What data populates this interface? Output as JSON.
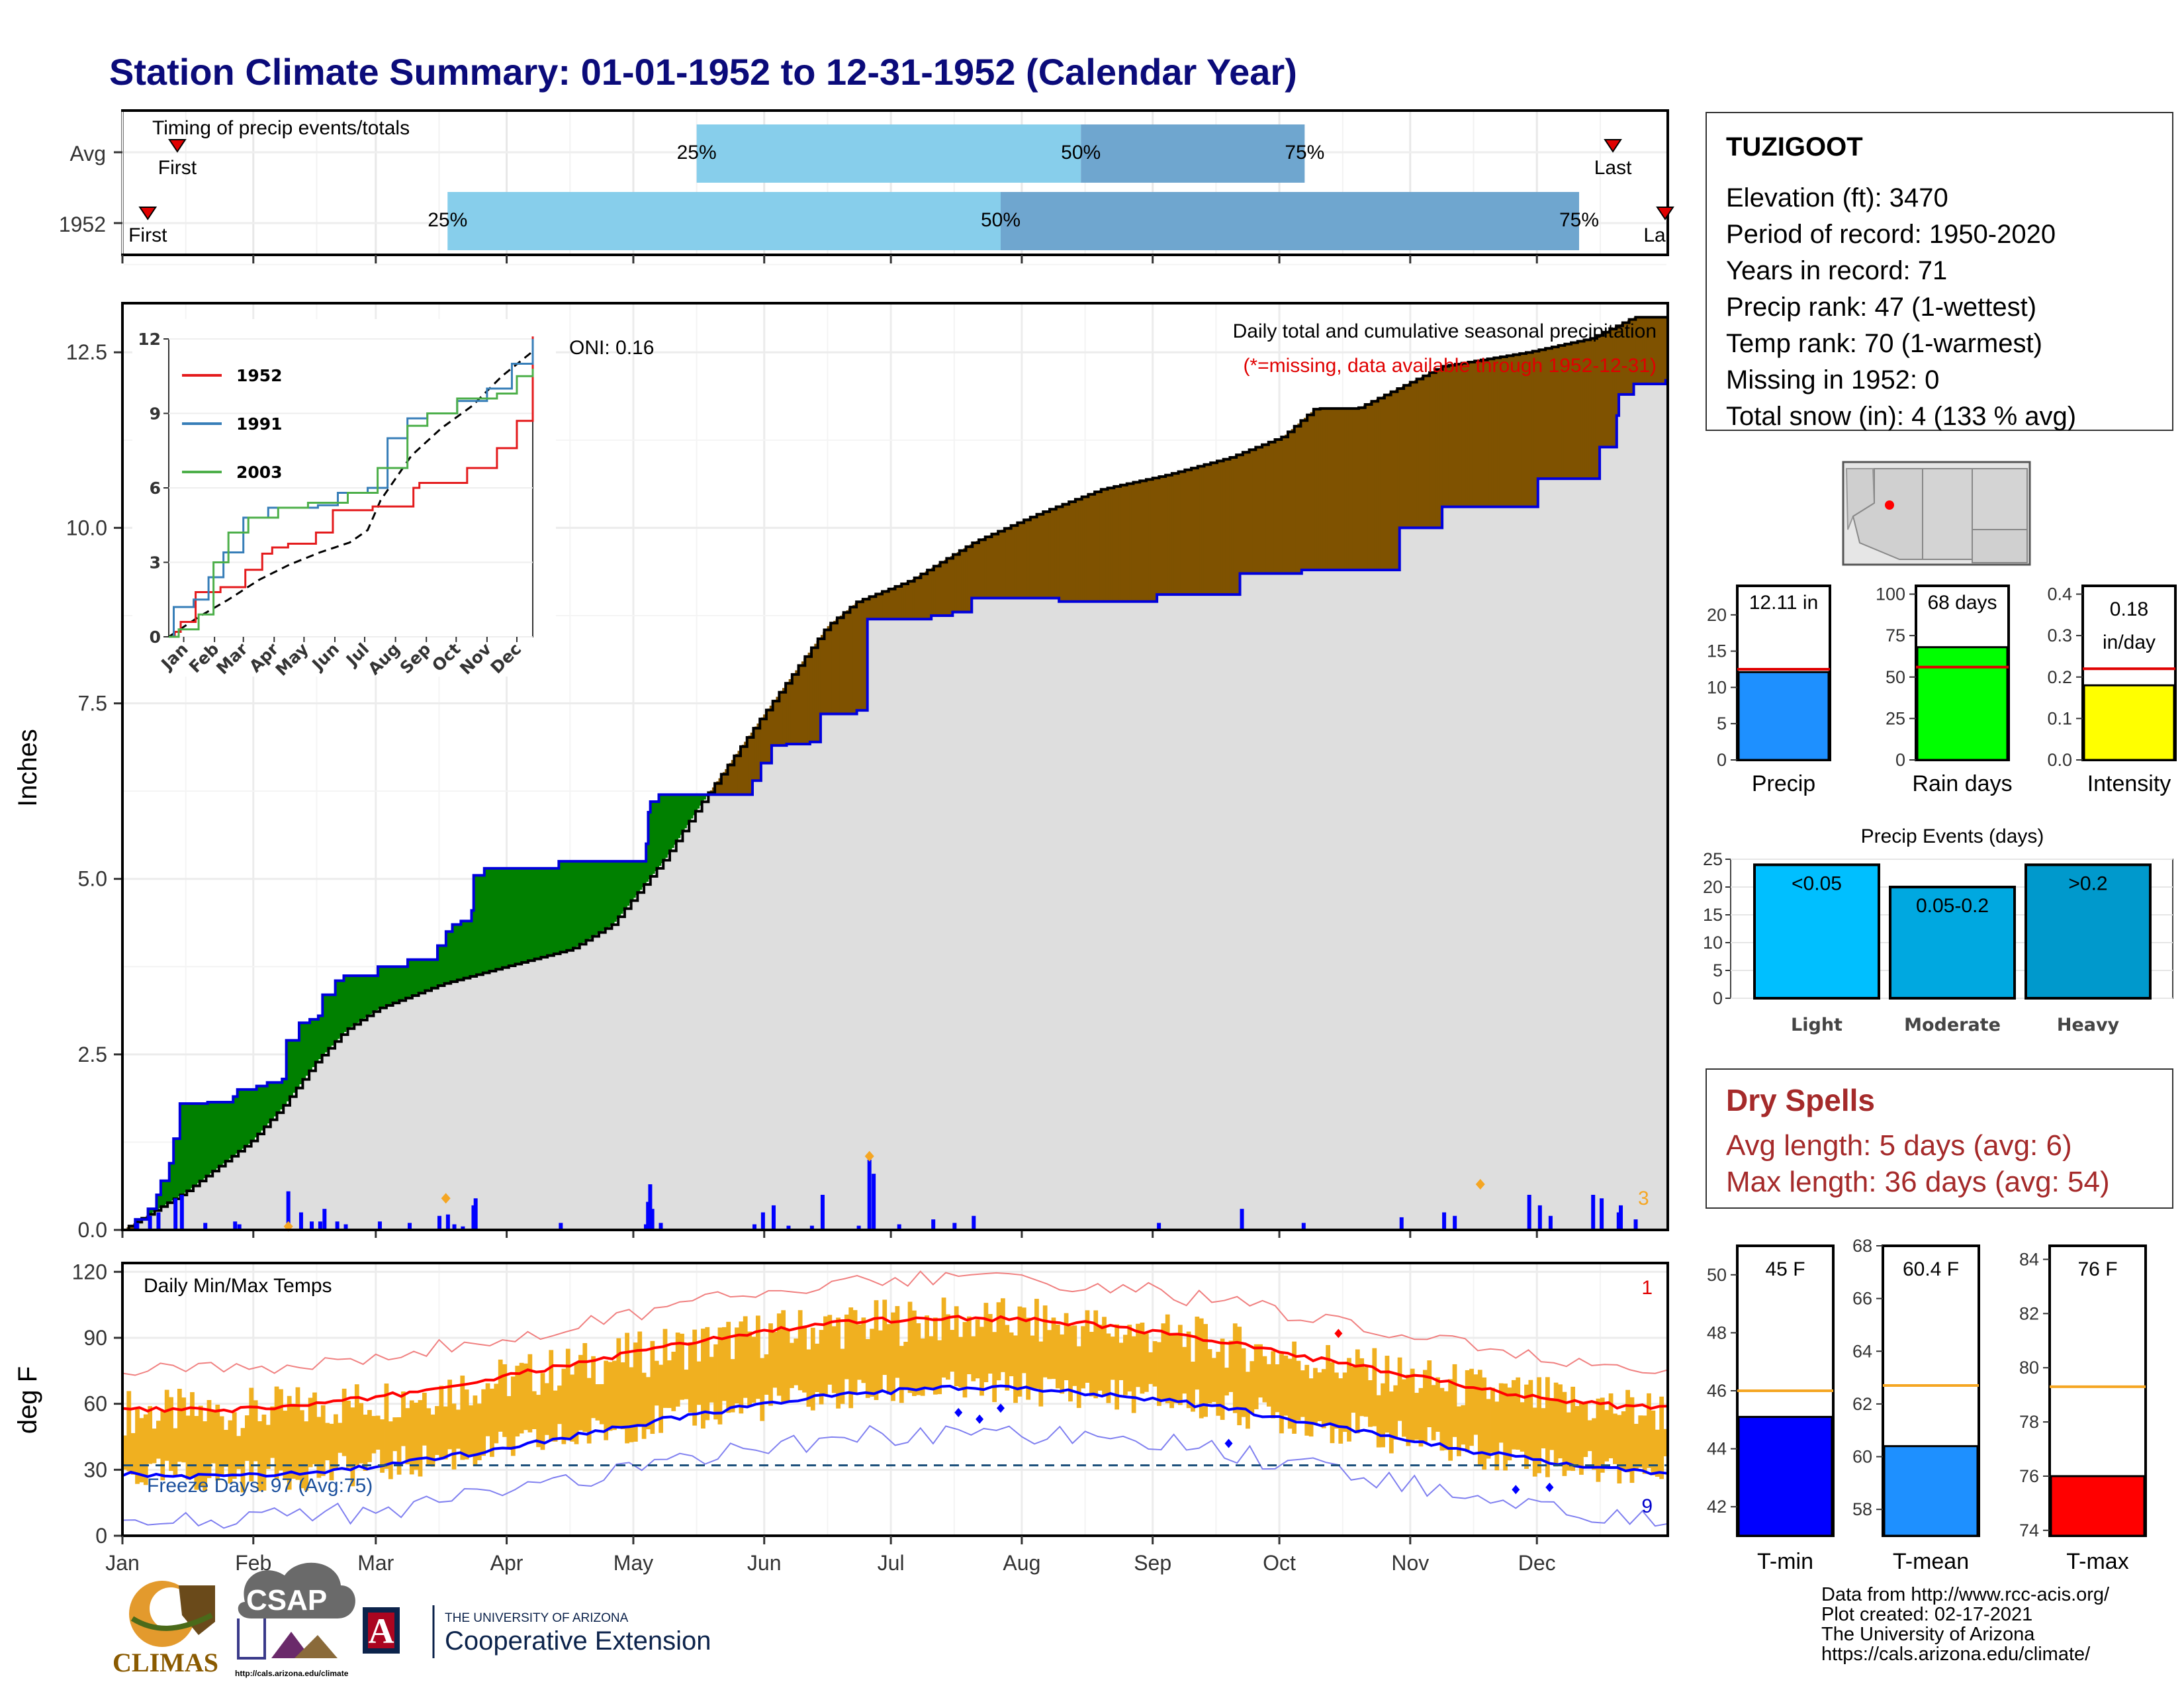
{
  "title": "Station Climate Summary: 01-01-1952 to 12-31-1952 (Calendar Year)",
  "months": [
    "Jan",
    "Feb",
    "Mar",
    "Apr",
    "May",
    "Jun",
    "Jul",
    "Aug",
    "Sep",
    "Oct",
    "Nov",
    "Dec"
  ],
  "timing": {
    "label": "Timing of precip events/totals",
    "rows": [
      {
        "name": "Avg",
        "first_doy": 13,
        "q25_doy": 136,
        "q50_doy": 227,
        "q75_doy": 280,
        "last_doy": 353,
        "first_label": "First",
        "last_label": "Last"
      },
      {
        "name": "1952",
        "first_doy": 6,
        "q25_doy": 77,
        "q50_doy": 208,
        "q75_doy": 345,
        "last_doy": 366,
        "first_label": "First",
        "last_label": "La"
      }
    ],
    "q_labels": [
      "25%",
      "50%",
      "75%"
    ]
  },
  "precip": {
    "ylabel": "Inches",
    "yticks": [
      "0.0",
      "2.5",
      "5.0",
      "7.5",
      "10.0",
      "12.5"
    ],
    "ylim": [
      0,
      13.2
    ],
    "annotation_title": "Daily total and cumulative seasonal precipitation",
    "annotation_missing": "(*=missing, data available through 1952-12-31)",
    "oni": "ONI: 0.16",
    "count_label": "3",
    "series_1952_cumulative": [
      [
        0,
        0
      ],
      [
        6,
        0.15
      ],
      [
        12,
        0.3
      ],
      [
        16,
        0.5
      ],
      [
        18,
        0.7
      ],
      [
        22,
        0.95
      ],
      [
        24,
        1.3
      ],
      [
        27,
        1.8
      ],
      [
        40,
        1.82
      ],
      [
        52,
        1.9
      ],
      [
        54,
        2.0
      ],
      [
        63,
        2.05
      ],
      [
        68,
        2.1
      ],
      [
        75,
        2.15
      ],
      [
        77,
        2.7
      ],
      [
        83,
        2.95
      ],
      [
        88,
        3.0
      ],
      [
        92,
        3.05
      ],
      [
        94,
        3.35
      ],
      [
        100,
        3.55
      ],
      [
        104,
        3.62
      ],
      [
        118,
        3.62
      ],
      [
        120,
        3.75
      ],
      [
        132,
        3.75
      ],
      [
        134,
        3.85
      ],
      [
        143,
        3.85
      ],
      [
        148,
        4.05
      ],
      [
        152,
        4.25
      ],
      [
        155,
        4.35
      ],
      [
        159,
        4.4
      ],
      [
        164,
        4.55
      ],
      [
        165,
        5.05
      ],
      [
        170,
        5.15
      ],
      [
        201,
        5.15
      ],
      [
        205,
        5.25
      ],
      [
        244,
        5.25
      ],
      [
        246,
        5.5
      ],
      [
        247,
        5.95
      ],
      [
        248,
        6.1
      ],
      [
        252,
        6.2
      ],
      [
        287,
        6.2
      ],
      [
        296,
        6.4
      ],
      [
        300,
        6.65
      ],
      [
        305,
        6.9
      ],
      [
        312,
        6.92
      ],
      [
        323,
        6.95
      ],
      [
        328,
        7.35
      ],
      [
        345,
        7.4
      ],
      [
        350,
        8.7
      ],
      [
        364,
        8.7
      ],
      [
        380,
        8.75
      ],
      [
        390,
        8.8
      ],
      [
        399,
        9.0
      ],
      [
        428,
        9.0
      ],
      [
        440,
        8.95
      ],
      [
        477,
        8.95
      ],
      [
        486,
        9.05
      ],
      [
        518,
        9.05
      ],
      [
        525,
        9.35
      ],
      [
        548,
        9.35
      ],
      [
        554,
        9.4
      ],
      [
        595,
        9.4
      ],
      [
        600,
        10.0
      ],
      [
        610,
        10.0
      ],
      [
        620,
        10.3
      ],
      [
        660,
        10.3
      ],
      [
        665,
        10.7
      ],
      [
        690,
        10.7
      ],
      [
        694,
        11.15
      ],
      [
        702,
        11.6
      ],
      [
        703,
        11.9
      ],
      [
        710,
        12.05
      ],
      [
        725,
        12.1
      ],
      [
        726,
        12.1
      ]
    ],
    "series_avg_cumulative": [
      [
        0,
        0
      ],
      [
        30,
        0.55
      ],
      [
        60,
        1.25
      ],
      [
        75,
        1.75
      ],
      [
        91,
        2.4
      ],
      [
        105,
        2.85
      ],
      [
        120,
        3.15
      ],
      [
        150,
        3.5
      ],
      [
        180,
        3.75
      ],
      [
        211,
        4.0
      ],
      [
        230,
        4.35
      ],
      [
        255,
        5.3
      ],
      [
        270,
        6.0
      ],
      [
        300,
        7.3
      ],
      [
        331,
        8.6
      ],
      [
        345,
        8.95
      ],
      [
        370,
        9.25
      ],
      [
        400,
        9.8
      ],
      [
        430,
        10.2
      ],
      [
        460,
        10.55
      ],
      [
        490,
        10.75
      ],
      [
        520,
        11.0
      ],
      [
        545,
        11.3
      ],
      [
        560,
        11.7
      ],
      [
        580,
        11.7
      ],
      [
        600,
        12.0
      ],
      [
        610,
        12.15
      ],
      [
        620,
        12.3
      ],
      [
        660,
        12.5
      ],
      [
        690,
        12.7
      ],
      [
        700,
        12.85
      ],
      [
        710,
        13.0
      ],
      [
        726,
        13.0
      ]
    ],
    "daily_bars": [
      [
        6,
        0.1
      ],
      [
        12,
        0.2
      ],
      [
        16,
        0.25
      ],
      [
        24,
        0.45
      ],
      [
        27,
        0.5
      ],
      [
        38,
        0.1
      ],
      [
        52,
        0.12
      ],
      [
        54,
        0.08
      ],
      [
        77,
        0.55
      ],
      [
        83,
        0.25
      ],
      [
        88,
        0.12
      ],
      [
        92,
        0.12
      ],
      [
        94,
        0.3
      ],
      [
        100,
        0.12
      ],
      [
        104,
        0.08
      ],
      [
        120,
        0.12
      ],
      [
        134,
        0.1
      ],
      [
        148,
        0.2
      ],
      [
        152,
        0.22
      ],
      [
        155,
        0.08
      ],
      [
        159,
        0.05
      ],
      [
        164,
        0.35
      ],
      [
        165,
        0.45
      ],
      [
        205,
        0.1
      ],
      [
        245,
        0.08
      ],
      [
        246,
        0.4
      ],
      [
        247,
        0.65
      ],
      [
        248,
        0.3
      ],
      [
        252,
        0.1
      ],
      [
        296,
        0.08
      ],
      [
        300,
        0.25
      ],
      [
        305,
        0.35
      ],
      [
        312,
        0.06
      ],
      [
        323,
        0.06
      ],
      [
        328,
        0.5
      ],
      [
        345,
        0.06
      ],
      [
        350,
        1.0
      ],
      [
        352,
        0.8
      ],
      [
        364,
        0.08
      ],
      [
        380,
        0.15
      ],
      [
        390,
        0.1
      ],
      [
        399,
        0.2
      ],
      [
        486,
        0.1
      ],
      [
        525,
        0.3
      ],
      [
        554,
        0.1
      ],
      [
        600,
        0.18
      ],
      [
        620,
        0.25
      ],
      [
        625,
        0.2
      ],
      [
        660,
        0.5
      ],
      [
        665,
        0.35
      ],
      [
        670,
        0.2
      ],
      [
        690,
        0.5
      ],
      [
        694,
        0.45
      ],
      [
        702,
        0.25
      ],
      [
        703,
        0.35
      ],
      [
        710,
        0.15
      ]
    ],
    "extreme_markers": [
      [
        151,
        0.45
      ],
      [
        350,
        1.05
      ],
      [
        637,
        0.65
      ],
      [
        77,
        0.05
      ]
    ]
  },
  "inset": {
    "series": [
      {
        "name": "1952",
        "color": "#e41a1c"
      },
      {
        "name": "1991",
        "color": "#377eb8"
      },
      {
        "name": "2003",
        "color": "#4daf4a"
      }
    ],
    "yticks": [
      "0",
      "3",
      "6",
      "9",
      "12"
    ],
    "months": [
      "Jan",
      "Feb",
      "Mar",
      "Apr",
      "May",
      "Jun",
      "Jul",
      "Aug",
      "Sep",
      "Oct",
      "Nov",
      "Dec"
    ]
  },
  "temps": {
    "ylabel": "deg F",
    "yticks": [
      "0",
      "30",
      "60",
      "90",
      "120"
    ],
    "label": "Daily Min/Max Temps",
    "freeze_label": "Freeze Days: 97 (Avg:75)",
    "count_top": "1",
    "count_bottom": "9",
    "freeze_line": 32
  },
  "info": {
    "station": "TUZIGOOT",
    "lines": [
      "Elevation (ft): 3470",
      "Period of record: 1950-2020",
      "Years in record: 71",
      "Precip rank: 47 (1-wettest)",
      "Temp rank: 70 (1-warmest)",
      "Missing in 1952: 0",
      "Total snow (in): 4 (133 % avg)"
    ]
  },
  "small_bars": [
    {
      "name": "Precip",
      "label": "12.11 in",
      "value": 12.11,
      "avg": 12.5,
      "ymax": 24,
      "yticks": [
        "0",
        "5",
        "10",
        "15",
        "20"
      ],
      "tickvals": [
        0,
        5,
        10,
        15,
        20
      ],
      "color": "#1e90ff"
    },
    {
      "name": "Rain days",
      "label": "68 days",
      "value": 68,
      "avg": 56,
      "ymax": 105,
      "yticks": [
        "0",
        "25",
        "50",
        "75",
        "100"
      ],
      "tickvals": [
        0,
        25,
        50,
        75,
        100
      ],
      "color": "#00ff00"
    },
    {
      "name": "Intensity",
      "label": "0.18",
      "label2": "in/day",
      "value": 0.18,
      "avg": 0.22,
      "ymax": 0.42,
      "yticks": [
        "0.0",
        "0.1",
        "0.2",
        "0.3",
        "0.4"
      ],
      "tickvals": [
        0,
        0.1,
        0.2,
        0.3,
        0.4
      ],
      "color": "#ffff00"
    }
  ],
  "events": {
    "title": "Precip Events (days)",
    "yticks": [
      "0",
      "5",
      "10",
      "15",
      "20",
      "25"
    ],
    "bars": [
      {
        "name": "Light",
        "label": "<0.05",
        "value": 24,
        "color": "#00bfff"
      },
      {
        "name": "Moderate",
        "label": "0.05-0.2",
        "value": 20,
        "color": "#00a8e0"
      },
      {
        "name": "Heavy",
        "label": ">0.2",
        "value": 24,
        "color": "#0099cc"
      }
    ]
  },
  "dry_spells": {
    "title": "Dry Spells",
    "avg": "Avg length: 5 days (avg: 6)",
    "max": "Max length: 36 days (avg: 54)"
  },
  "temp_bars": [
    {
      "name": "T-min",
      "label": "45 F",
      "value": 45.1,
      "avg": 46,
      "ymin": 41,
      "ymax": 51,
      "yticks": [
        "42",
        "44",
        "46",
        "48",
        "50"
      ],
      "tickvals": [
        42,
        44,
        46,
        48,
        50
      ],
      "color": "#0000ff"
    },
    {
      "name": "T-mean",
      "label": "60.4 F",
      "value": 60.4,
      "avg": 62.7,
      "ymin": 57,
      "ymax": 68,
      "yticks": [
        "58",
        "60",
        "62",
        "64",
        "66",
        "68"
      ],
      "tickvals": [
        58,
        60,
        62,
        64,
        66,
        68
      ],
      "color": "#1e90ff"
    },
    {
      "name": "T-max",
      "label": "76 F",
      "value": 76,
      "avg": 79.3,
      "ymin": 73.8,
      "ymax": 84.5,
      "yticks": [
        "74",
        "76",
        "78",
        "80",
        "82",
        "84"
      ],
      "tickvals": [
        74,
        76,
        78,
        80,
        82,
        84
      ],
      "color": "#ff0000"
    }
  ],
  "credits": [
    "Data from http://www.rcc-acis.org/",
    "Plot created: 02-17-2021",
    "The University of Arizona",
    "https://cals.arizona.edu/climate/"
  ],
  "logos": {
    "climas": "CLIMAS",
    "csap": "CSAP",
    "csap_url": "http://cals.arizona.edu/climate",
    "ua_line1": "THE UNIVERSITY OF ARIZONA",
    "ua_line2": "Cooperative Extension",
    "ua_mark": "A"
  }
}
